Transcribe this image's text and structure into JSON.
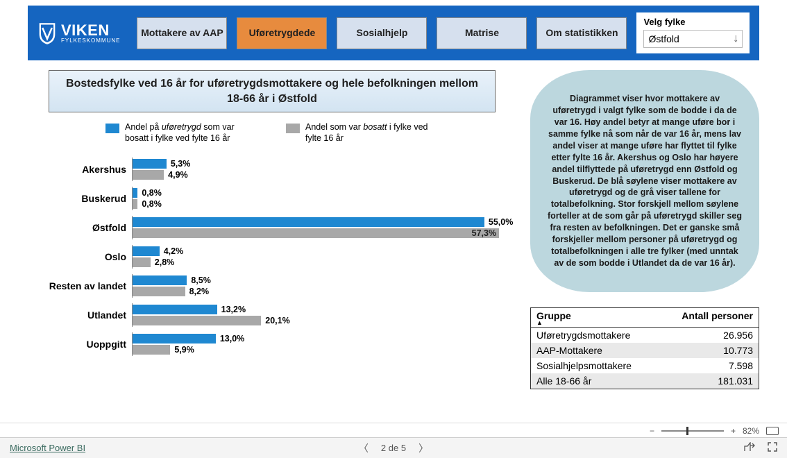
{
  "brand": {
    "title": "VIKEN",
    "subtitle": "FYLKESKOMMUNE"
  },
  "nav": {
    "tabs": [
      {
        "label": "Mottakere av AAP",
        "style": "light"
      },
      {
        "label": "Uføretrygdede",
        "style": "active"
      },
      {
        "label": "Sosialhjelp",
        "style": "light"
      },
      {
        "label": "Matrise",
        "style": "light"
      },
      {
        "label": "Om statistikken",
        "style": "light"
      }
    ],
    "fylke_label": "Velg fylke",
    "fylke_value": "Østfold"
  },
  "chart": {
    "title": "Bostedsfylke ved 16 år for uføretrygdsmottakere og hele befolkningen mellom 18-66 år i Østfold",
    "legend": [
      {
        "color": "#1f88d1",
        "text_html": "Andel på <i>uføretrygd</i> som var bosatt i fylke ved fylte 16 år"
      },
      {
        "color": "#a8a8a8",
        "text_html": "Andel som var <i>bosatt</i> i fylke ved fylte 16 år"
      }
    ],
    "max_pct": 60,
    "series_colors": {
      "blue": "#1f88d1",
      "grey": "#a8a8a8"
    },
    "label_color": "#202020",
    "rows": [
      {
        "label": "Akershus",
        "blue": 5.3,
        "grey": 4.9,
        "blue_txt": "5,3%",
        "grey_txt": "4,9%"
      },
      {
        "label": "Buskerud",
        "blue": 0.8,
        "grey": 0.8,
        "blue_txt": "0,8%",
        "grey_txt": "0,8%"
      },
      {
        "label": "Østfold",
        "blue": 55.0,
        "grey": 57.3,
        "blue_txt": "55,0%",
        "grey_txt": "57,3%",
        "grey_label_inside": true
      },
      {
        "label": "Oslo",
        "blue": 4.2,
        "grey": 2.8,
        "blue_txt": "4,2%",
        "grey_txt": "2,8%"
      },
      {
        "label": "Resten av landet",
        "blue": 8.5,
        "grey": 8.2,
        "blue_txt": "8,5%",
        "grey_txt": "8,2%"
      },
      {
        "label": "Utlandet",
        "blue": 13.2,
        "grey": 20.1,
        "blue_txt": "13,2%",
        "grey_txt": "20,1%"
      },
      {
        "label": "Uoppgitt",
        "blue": 13.0,
        "grey": 5.9,
        "blue_txt": "13,0%",
        "grey_txt": "5,9%"
      }
    ]
  },
  "info_text": "Diagrammet viser hvor mottakere av uføretrygd i valgt fylke som de bodde i da de var 16. Høy andel betyr at mange uføre bor i samme fylke nå som når de var 16 år, mens lav andel viser at mange uføre har flyttet til fylke etter fylte 16 år. Akershus og Oslo har høyere andel tilflyttede på uføretrygd enn Østfold og Buskerud. De blå søylene viser mottakere av uføretrygd og de grå viser tallene for totalbefolkning. Stor forskjell mellom søylene forteller at de som går på uføretrygd skiller seg fra resten av befolkningen. Det er ganske små forskjeller mellom personer på uføretrygd og totalbefolkningen i alle tre fylker (med unntak av de som bodde i Utlandet da de var 16 år).",
  "table": {
    "col1": "Gruppe",
    "col2": "Antall personer",
    "rows": [
      {
        "g": "Uføretrygdsmottakere",
        "n": "26.956",
        "alt": false
      },
      {
        "g": "AAP-Mottakere",
        "n": "10.773",
        "alt": true
      },
      {
        "g": "Sosialhjelpsmottakere",
        "n": "7.598",
        "alt": false
      },
      {
        "g": "Alle 18-66 år",
        "n": "181.031",
        "alt": true
      }
    ]
  },
  "footer": {
    "link": "Microsoft Power BI",
    "page_text": "2 de 5",
    "zoom_pct": "82%",
    "zoom_slider_pos_pct": 40
  }
}
